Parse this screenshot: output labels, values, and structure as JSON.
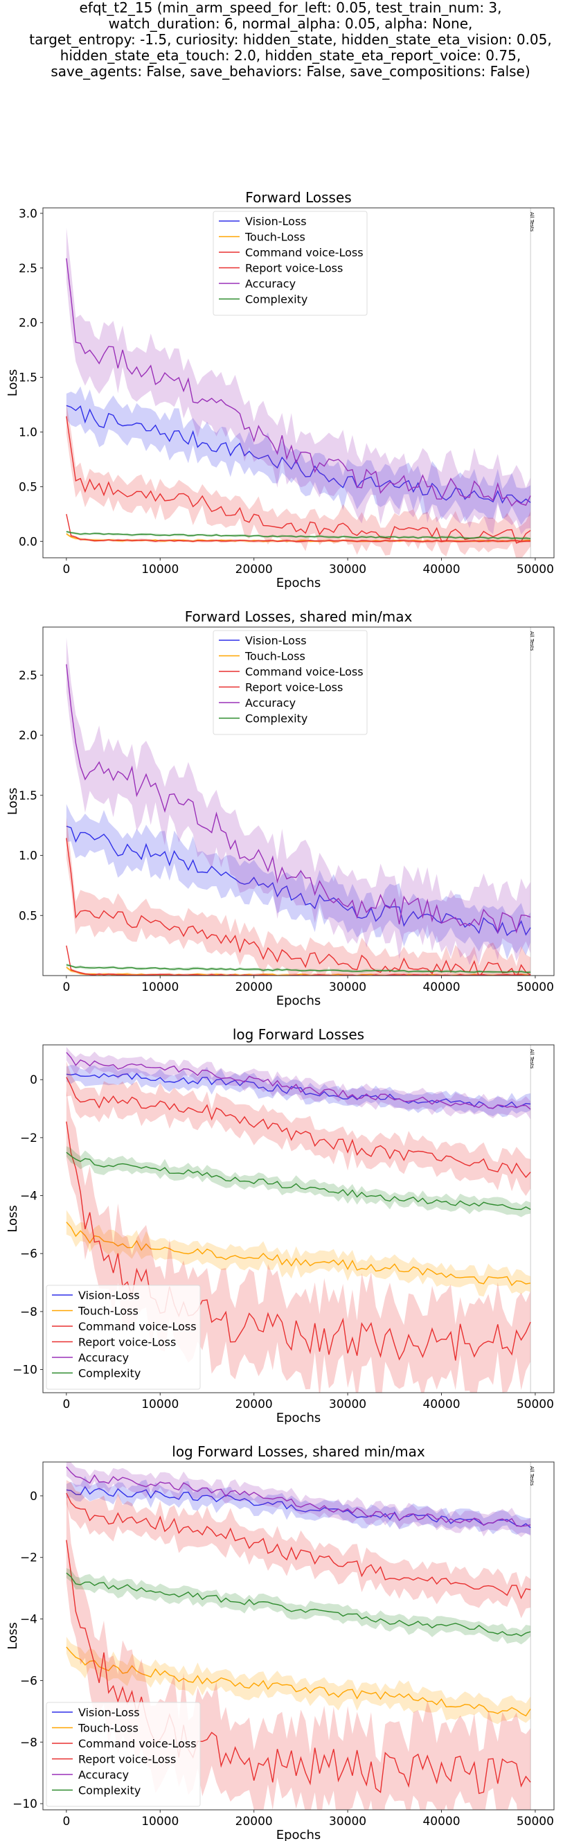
{
  "suptitle": [
    "efqt_t2_15 (min_arm_speed_for_left: 0.05, test_train_num: 3,",
    "watch_duration: 6, normal_alpha: 0.05, alpha: None,",
    "target_entropy: -1.5, curiosity: hidden_state, hidden_state_eta_vision: 0.05,",
    "hidden_state_eta_touch: 2.0, hidden_state_eta_report_voice: 0.75,",
    "save_agents: False, save_behaviors: False, save_compositions: False)"
  ],
  "colors": {
    "vision": "#2f2fe8",
    "touch": "#ffa500",
    "command": "#e83030",
    "report": "#e83030",
    "accuracy": "#9a30b8",
    "complexity": "#2e8b2e"
  },
  "chart_data": [
    {
      "type": "line",
      "title": "Forward Losses",
      "xlabel": "Epochs",
      "ylabel": "Loss",
      "xlim": [
        -2500,
        52000
      ],
      "ylim": [
        -0.15,
        3.05
      ],
      "xticks": [
        0,
        10000,
        20000,
        30000,
        40000,
        50000
      ],
      "yticks": [
        0.0,
        0.5,
        1.0,
        1.5,
        2.0,
        2.5,
        3.0
      ],
      "ytick_labels": [
        "0.0",
        "0.5",
        "1.0",
        "1.5",
        "2.0",
        "2.5",
        "3.0"
      ],
      "vline_x": 49500,
      "vline_label": "All Tests",
      "legend": "upper center",
      "series": [
        {
          "name": "Vision-Loss",
          "key": "vision",
          "x": [
            0,
            1000,
            2500,
            5000,
            10000,
            15000,
            20000,
            25000,
            30000,
            35000,
            40000,
            45000,
            49500
          ],
          "y": [
            1.25,
            1.18,
            1.15,
            1.08,
            1.0,
            0.9,
            0.8,
            0.65,
            0.56,
            0.5,
            0.45,
            0.41,
            0.38
          ],
          "band": 0.14
        },
        {
          "name": "Touch-Loss",
          "key": "touch",
          "x": [
            0,
            500,
            1500,
            3000,
            10000,
            20000,
            30000,
            40000,
            49500
          ],
          "y": [
            0.07,
            0.04,
            0.02,
            0.01,
            0.008,
            0.006,
            0.005,
            0.004,
            0.004
          ],
          "band": 0.01
        },
        {
          "name": "Command voice-Loss",
          "key": "command",
          "x": [
            0,
            500,
            1500,
            3000,
            10000,
            20000,
            30000,
            40000,
            49500
          ],
          "y": [
            0.25,
            0.05,
            0.02,
            0.01,
            0.005,
            0.004,
            0.003,
            0.003,
            0.003
          ],
          "band": 0.01
        },
        {
          "name": "Report voice-Loss",
          "key": "report",
          "x": [
            0,
            1000,
            2500,
            5000,
            10000,
            15000,
            20000,
            25000,
            30000,
            35000,
            40000,
            45000,
            49500
          ],
          "y": [
            1.15,
            0.55,
            0.5,
            0.48,
            0.42,
            0.35,
            0.22,
            0.14,
            0.11,
            0.08,
            0.06,
            0.05,
            0.04
          ],
          "band": 0.12
        },
        {
          "name": "Accuracy",
          "key": "accuracy",
          "x": [
            0,
            1000,
            2000,
            3000,
            5000,
            10000,
            15000,
            20000,
            25000,
            30000,
            35000,
            40000,
            45000,
            49500
          ],
          "y": [
            2.6,
            1.9,
            1.75,
            1.65,
            1.7,
            1.5,
            1.3,
            1.0,
            0.8,
            0.6,
            0.55,
            0.5,
            0.45,
            0.42
          ],
          "band": 0.22
        },
        {
          "name": "Complexity",
          "key": "complexity",
          "x": [
            0,
            1000,
            5000,
            10000,
            20000,
            30000,
            40000,
            49500
          ],
          "y": [
            0.09,
            0.07,
            0.065,
            0.06,
            0.05,
            0.04,
            0.035,
            0.03
          ],
          "band": 0.01
        }
      ]
    },
    {
      "type": "line",
      "title": "Forward Losses, shared min/max",
      "xlabel": "Epochs",
      "ylabel": "Loss",
      "xlim": [
        -2500,
        52000
      ],
      "ylim": [
        0.0,
        2.9
      ],
      "xticks": [
        0,
        10000,
        20000,
        30000,
        40000,
        50000
      ],
      "yticks": [
        0.5,
        1.0,
        1.5,
        2.0,
        2.5
      ],
      "ytick_labels": [
        "0.5",
        "1.0",
        "1.5",
        "2.0",
        "2.5"
      ],
      "vline_x": 49500,
      "vline_label": "All Tests",
      "legend": "upper center",
      "series": [
        {
          "name": "Vision-Loss",
          "key": "vision",
          "x": [
            0,
            1000,
            2500,
            5000,
            10000,
            15000,
            20000,
            25000,
            30000,
            35000,
            40000,
            45000,
            49500
          ],
          "y": [
            1.25,
            1.18,
            1.15,
            1.08,
            1.0,
            0.9,
            0.8,
            0.65,
            0.56,
            0.5,
            0.45,
            0.41,
            0.38
          ],
          "band": 0.14
        },
        {
          "name": "Touch-Loss",
          "key": "touch",
          "x": [
            0,
            500,
            1500,
            3000,
            10000,
            20000,
            30000,
            40000,
            49500
          ],
          "y": [
            0.07,
            0.04,
            0.02,
            0.01,
            0.008,
            0.006,
            0.005,
            0.004,
            0.004
          ],
          "band": 0.01
        },
        {
          "name": "Command voice-Loss",
          "key": "command",
          "x": [
            0,
            500,
            1500,
            3000,
            10000,
            20000,
            30000,
            40000,
            49500
          ],
          "y": [
            0.25,
            0.05,
            0.02,
            0.01,
            0.005,
            0.004,
            0.003,
            0.003,
            0.003
          ],
          "band": 0.01
        },
        {
          "name": "Report voice-Loss",
          "key": "report",
          "x": [
            0,
            1000,
            2500,
            5000,
            10000,
            15000,
            20000,
            25000,
            30000,
            35000,
            40000,
            45000,
            49500
          ],
          "y": [
            1.15,
            0.55,
            0.5,
            0.48,
            0.42,
            0.35,
            0.22,
            0.14,
            0.11,
            0.08,
            0.06,
            0.05,
            0.04
          ],
          "band": 0.12
        },
        {
          "name": "Accuracy",
          "key": "accuracy",
          "x": [
            0,
            1000,
            2000,
            3000,
            5000,
            10000,
            15000,
            20000,
            25000,
            30000,
            35000,
            40000,
            45000,
            49500
          ],
          "y": [
            2.6,
            1.9,
            1.75,
            1.65,
            1.7,
            1.5,
            1.3,
            1.0,
            0.8,
            0.6,
            0.55,
            0.5,
            0.45,
            0.42
          ],
          "band": 0.22
        },
        {
          "name": "Complexity",
          "key": "complexity",
          "x": [
            0,
            1000,
            5000,
            10000,
            20000,
            30000,
            40000,
            49500
          ],
          "y": [
            0.09,
            0.07,
            0.065,
            0.06,
            0.05,
            0.04,
            0.035,
            0.03
          ],
          "band": 0.01
        }
      ]
    },
    {
      "type": "line",
      "title": "log Forward Losses",
      "xlabel": "Epochs",
      "ylabel": "Loss",
      "xlim": [
        -2500,
        52000
      ],
      "ylim": [
        -10.8,
        1.2
      ],
      "xticks": [
        0,
        10000,
        20000,
        30000,
        40000,
        50000
      ],
      "yticks": [
        0,
        -2,
        -4,
        -6,
        -8,
        -10
      ],
      "ytick_labels": [
        "0",
        "−2",
        "−4",
        "−6",
        "−8",
        "−10"
      ],
      "vline_x": 49500,
      "vline_label": "All Tests",
      "legend": "lower left",
      "series": [
        {
          "name": "Vision-Loss",
          "key": "vision",
          "x": [
            0,
            2500,
            5000,
            10000,
            15000,
            20000,
            25000,
            30000,
            35000,
            40000,
            45000,
            49500
          ],
          "y": [
            0.2,
            0.15,
            0.1,
            0.05,
            -0.05,
            -0.2,
            -0.4,
            -0.55,
            -0.65,
            -0.75,
            -0.85,
            -0.95
          ],
          "band": 0.25
        },
        {
          "name": "Touch-Loss",
          "key": "touch",
          "x": [
            0,
            1000,
            2500,
            5000,
            10000,
            15000,
            20000,
            25000,
            30000,
            35000,
            40000,
            45000,
            49500
          ],
          "y": [
            -4.9,
            -5.3,
            -5.5,
            -5.6,
            -5.8,
            -6.0,
            -6.1,
            -6.3,
            -6.4,
            -6.5,
            -6.7,
            -6.9,
            -7.0
          ],
          "band": 0.3
        },
        {
          "name": "Command voice-Loss",
          "key": "command",
          "x": [
            0,
            1000,
            2500,
            5000,
            7500,
            10000,
            12500,
            15000,
            20000,
            25000,
            30000,
            35000,
            40000,
            45000,
            49500
          ],
          "y": [
            -1.4,
            -3.5,
            -5.0,
            -6.2,
            -7.0,
            -7.5,
            -8.0,
            -8.2,
            -8.6,
            -8.8,
            -8.9,
            -9.0,
            -9.0,
            -9.1,
            -9.0
          ],
          "band": 1.2
        },
        {
          "name": "Report voice-Loss",
          "key": "report",
          "x": [
            0,
            1000,
            2500,
            5000,
            10000,
            15000,
            20000,
            25000,
            30000,
            35000,
            40000,
            45000,
            49500
          ],
          "y": [
            0.1,
            -0.6,
            -0.7,
            -0.75,
            -0.9,
            -1.1,
            -1.5,
            -2.0,
            -2.3,
            -2.6,
            -2.8,
            -3.0,
            -3.2
          ],
          "band": 0.45
        },
        {
          "name": "Accuracy",
          "key": "accuracy",
          "x": [
            0,
            1000,
            2500,
            5000,
            10000,
            15000,
            20000,
            25000,
            30000,
            35000,
            40000,
            45000,
            49500
          ],
          "y": [
            0.95,
            0.6,
            0.55,
            0.5,
            0.4,
            0.2,
            0.0,
            -0.3,
            -0.5,
            -0.65,
            -0.75,
            -0.85,
            -0.9
          ],
          "band": 0.25
        },
        {
          "name": "Complexity",
          "key": "complexity",
          "x": [
            0,
            1000,
            2500,
            5000,
            10000,
            15000,
            20000,
            25000,
            30000,
            35000,
            40000,
            45000,
            49500
          ],
          "y": [
            -2.5,
            -2.8,
            -2.85,
            -2.95,
            -3.1,
            -3.3,
            -3.5,
            -3.7,
            -3.9,
            -4.1,
            -4.2,
            -4.35,
            -4.5
          ],
          "band": 0.2
        }
      ]
    },
    {
      "type": "line",
      "title": "log Forward Losses, shared min/max",
      "xlabel": "Epochs",
      "ylabel": "Loss",
      "xlim": [
        -2500,
        52000
      ],
      "ylim": [
        -10.2,
        1.1
      ],
      "xticks": [
        0,
        10000,
        20000,
        30000,
        40000,
        50000
      ],
      "yticks": [
        0,
        -2,
        -4,
        -6,
        -8,
        -10
      ],
      "ytick_labels": [
        "0",
        "−2",
        "−4",
        "−6",
        "−8",
        "−10"
      ],
      "vline_x": 49500,
      "vline_label": "All Tests",
      "legend": "lower left",
      "series": [
        {
          "name": "Vision-Loss",
          "key": "vision",
          "x": [
            0,
            2500,
            5000,
            10000,
            15000,
            20000,
            25000,
            30000,
            35000,
            40000,
            45000,
            49500
          ],
          "y": [
            0.2,
            0.15,
            0.1,
            0.05,
            -0.05,
            -0.2,
            -0.4,
            -0.55,
            -0.65,
            -0.75,
            -0.85,
            -0.95
          ],
          "band": 0.25
        },
        {
          "name": "Touch-Loss",
          "key": "touch",
          "x": [
            0,
            1000,
            2500,
            5000,
            10000,
            15000,
            20000,
            25000,
            30000,
            35000,
            40000,
            45000,
            49500
          ],
          "y": [
            -4.9,
            -5.3,
            -5.5,
            -5.6,
            -5.8,
            -6.0,
            -6.1,
            -6.3,
            -6.4,
            -6.5,
            -6.7,
            -6.9,
            -7.0
          ],
          "band": 0.3
        },
        {
          "name": "Command voice-Loss",
          "key": "command",
          "x": [
            0,
            1000,
            2500,
            5000,
            7500,
            10000,
            12500,
            15000,
            20000,
            25000,
            30000,
            35000,
            40000,
            45000,
            49500
          ],
          "y": [
            -1.4,
            -3.5,
            -5.0,
            -6.2,
            -7.0,
            -7.5,
            -8.0,
            -8.2,
            -8.6,
            -8.8,
            -8.9,
            -9.0,
            -9.0,
            -9.1,
            -9.0
          ],
          "band": 1.2
        },
        {
          "name": "Report voice-Loss",
          "key": "report",
          "x": [
            0,
            1000,
            2500,
            5000,
            10000,
            15000,
            20000,
            25000,
            30000,
            35000,
            40000,
            45000,
            49500
          ],
          "y": [
            0.1,
            -0.6,
            -0.7,
            -0.75,
            -0.9,
            -1.1,
            -1.5,
            -2.0,
            -2.3,
            -2.6,
            -2.8,
            -3.0,
            -3.2
          ],
          "band": 0.45
        },
        {
          "name": "Accuracy",
          "key": "accuracy",
          "x": [
            0,
            1000,
            2500,
            5000,
            10000,
            15000,
            20000,
            25000,
            30000,
            35000,
            40000,
            45000,
            49500
          ],
          "y": [
            0.95,
            0.6,
            0.55,
            0.5,
            0.4,
            0.2,
            0.0,
            -0.3,
            -0.5,
            -0.65,
            -0.75,
            -0.85,
            -0.9
          ],
          "band": 0.25
        },
        {
          "name": "Complexity",
          "key": "complexity",
          "x": [
            0,
            1000,
            2500,
            5000,
            10000,
            15000,
            20000,
            25000,
            30000,
            35000,
            40000,
            45000,
            49500
          ],
          "y": [
            -2.5,
            -2.8,
            -2.85,
            -2.95,
            -3.1,
            -3.3,
            -3.5,
            -3.7,
            -3.9,
            -4.1,
            -4.2,
            -4.35,
            -4.5
          ],
          "band": 0.2
        }
      ]
    }
  ]
}
